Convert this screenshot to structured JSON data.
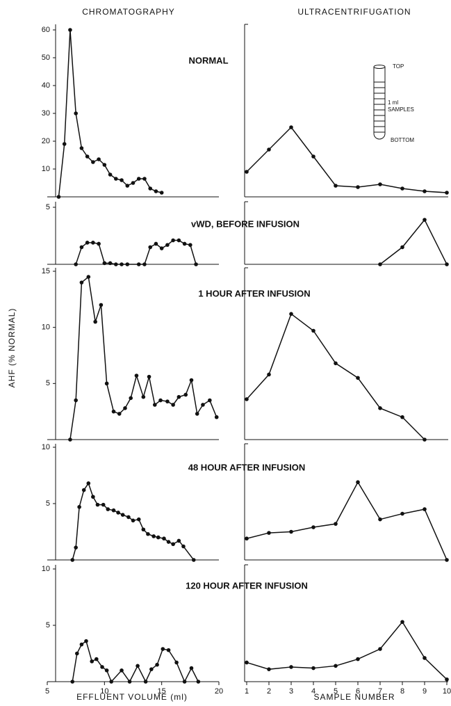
{
  "column_titles": [
    "CHROMATOGRAPHY",
    "ULTRACENTRIFUGATION"
  ],
  "y_axis_label": "AHF (% NORMAL)",
  "x_axis_labels": [
    "EFFLUENT VOLUME (ml)",
    "SAMPLE NUMBER"
  ],
  "inset": {
    "top": "TOP",
    "samples": [
      "1 ml",
      "SAMPLES"
    ],
    "bottom": "BOTTOM"
  },
  "chart_data": [
    {
      "type": "line",
      "title": "NORMAL",
      "x": [
        6,
        6.5,
        7,
        7.5,
        8,
        8.5,
        9,
        9.5,
        10,
        10.5,
        11,
        11.5,
        12,
        12.5,
        13,
        13.5,
        14,
        14.5,
        15
      ],
      "values": [
        0,
        19,
        60,
        30,
        17.5,
        14.5,
        12.5,
        13.5,
        11.5,
        8,
        6.5,
        6,
        4,
        5,
        6.5,
        6.5,
        3,
        2,
        1.5
      ],
      "xlim": [
        5,
        20
      ],
      "ylim": [
        0,
        60
      ],
      "yticks": [
        10,
        20,
        30,
        40,
        50,
        60
      ]
    },
    {
      "type": "line",
      "x": [
        1,
        2,
        3,
        4,
        5,
        6,
        7,
        8,
        9,
        10
      ],
      "values": [
        9,
        17,
        25,
        14.5,
        4,
        3.5,
        4.5,
        3,
        2,
        1.5
      ],
      "xlim": [
        1,
        10
      ],
      "ylim": [
        0,
        60
      ]
    },
    {
      "type": "line",
      "title": "vWD, BEFORE INFUSION",
      "x": [
        7.5,
        8,
        8.5,
        9,
        9.5,
        10,
        10.5,
        11,
        11.5,
        12,
        13,
        13.5,
        14,
        14.5,
        15,
        15.5,
        16,
        16.5,
        17,
        17.5,
        18
      ],
      "values": [
        0,
        1.5,
        1.9,
        1.9,
        1.8,
        0.1,
        0.1,
        0,
        0,
        0,
        0,
        0,
        1.5,
        1.8,
        1.4,
        1.7,
        2.1,
        2.1,
        1.8,
        1.7,
        0
      ],
      "xlim": [
        5,
        20
      ],
      "ylim": [
        0,
        5
      ],
      "yticks": [
        5
      ]
    },
    {
      "type": "line",
      "x": [
        7,
        8,
        9,
        10
      ],
      "values": [
        0,
        1.5,
        3.9,
        0
      ],
      "xlim": [
        1,
        10
      ],
      "ylim": [
        0,
        5
      ]
    },
    {
      "type": "line",
      "title": "1 HOUR AFTER INFUSION",
      "x": [
        7,
        7.5,
        8,
        8.6,
        9.2,
        9.7,
        10.2,
        10.8,
        11.3,
        11.8,
        12.3,
        12.8,
        13.4,
        13.9,
        14.4,
        14.9,
        15.5,
        16,
        16.5,
        17.1,
        17.6,
        18.1,
        18.6,
        19.2,
        19.8
      ],
      "values": [
        0,
        3.5,
        14,
        14.5,
        10.5,
        12,
        5,
        2.5,
        2.3,
        2.8,
        3.7,
        5.7,
        3.8,
        5.6,
        3.1,
        3.5,
        3.4,
        3.1,
        3.8,
        4,
        5.3,
        2.3,
        3.1,
        3.5,
        2
      ],
      "xlim": [
        5,
        20
      ],
      "ylim": [
        0,
        15
      ],
      "yticks": [
        5,
        10,
        15
      ]
    },
    {
      "type": "line",
      "x": [
        1,
        2,
        3,
        4,
        5,
        6,
        7,
        8,
        9
      ],
      "values": [
        3.6,
        5.8,
        11.2,
        9.7,
        6.8,
        5.5,
        2.8,
        2,
        0
      ],
      "xlim": [
        1,
        10
      ],
      "ylim": [
        0,
        15
      ]
    },
    {
      "type": "line",
      "title": "48 HOUR AFTER INFUSION",
      "x": [
        7.2,
        7.5,
        7.8,
        8.2,
        8.6,
        9,
        9.4,
        9.9,
        10.3,
        10.8,
        11.2,
        11.6,
        12.1,
        12.5,
        13,
        13.4,
        13.8,
        14.3,
        14.7,
        15.2,
        15.6,
        16,
        16.5,
        16.9,
        17.8
      ],
      "values": [
        0,
        1.1,
        4.7,
        6.2,
        6.8,
        5.6,
        4.9,
        4.9,
        4.5,
        4.4,
        4.2,
        4,
        3.8,
        3.5,
        3.6,
        2.7,
        2.3,
        2.1,
        2,
        1.9,
        1.6,
        1.4,
        1.7,
        1.2,
        0
      ],
      "xlim": [
        5,
        20
      ],
      "ylim": [
        0,
        10
      ],
      "yticks": [
        5,
        10
      ]
    },
    {
      "type": "line",
      "x": [
        1,
        2,
        3,
        4,
        5,
        6,
        7,
        8,
        9,
        10
      ],
      "values": [
        1.9,
        2.4,
        2.5,
        2.9,
        3.2,
        6.9,
        3.6,
        4.1,
        4.5,
        0
      ],
      "xlim": [
        1,
        10
      ],
      "ylim": [
        0,
        10
      ]
    },
    {
      "type": "line",
      "title": "120 HOUR AFTER INFUSION",
      "x": [
        7.2,
        7.6,
        8,
        8.4,
        8.9,
        9.3,
        9.8,
        10.2,
        10.6,
        11.5,
        12.2,
        12.9,
        13.6,
        14.1,
        14.6,
        15.1,
        15.6,
        16.3,
        17,
        17.6,
        18.2
      ],
      "values": [
        0,
        2.5,
        3.3,
        3.6,
        1.8,
        2,
        1.3,
        1,
        0,
        1,
        0,
        1.4,
        0,
        1.1,
        1.5,
        2.9,
        2.8,
        1.7,
        0,
        1.2,
        0
      ],
      "xlim": [
        5,
        20
      ],
      "ylim": [
        0,
        10
      ],
      "yticks": [
        5,
        10
      ],
      "xticks": [
        5,
        10,
        15,
        20
      ]
    },
    {
      "type": "line",
      "x": [
        1,
        2,
        3,
        4,
        5,
        6,
        7,
        8,
        9,
        10
      ],
      "values": [
        1.7,
        1.1,
        1.3,
        1.2,
        1.4,
        2,
        2.9,
        5.3,
        2.1,
        0.2
      ],
      "xlim": [
        1,
        10
      ],
      "ylim": [
        0,
        10
      ],
      "xticks": [
        1,
        2,
        3,
        4,
        5,
        6,
        7,
        8,
        9,
        10
      ]
    }
  ]
}
